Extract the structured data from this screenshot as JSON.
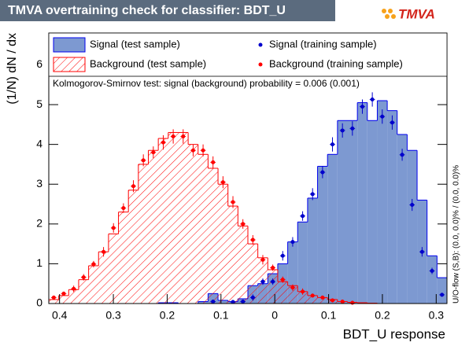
{
  "chart_data": {
    "type": "histogram",
    "title": "TMVA overtraining check for classifier: BDT_U",
    "logo": "TMVA",
    "xlabel": "BDT_U response",
    "ylabel": "(1/N) dN / dx",
    "annotation": "Kolmogorov-Smirnov test: signal (background) probability = 0.006 (0.001)",
    "side_note": "U/O-flow (S,B): (0.0, 0.0)% / (0.0, 0.0)%",
    "bins": [
      -0.42,
      -0.4015,
      -0.383,
      -0.3645,
      -0.346,
      -0.3275,
      -0.309,
      -0.2905,
      -0.272,
      -0.2535,
      -0.235,
      -0.2165,
      -0.198,
      -0.1795,
      -0.161,
      -0.1425,
      -0.124,
      -0.1055,
      -0.087,
      -0.0685,
      -0.05,
      -0.0315,
      -0.013,
      0.0055,
      0.024,
      0.0425,
      0.061,
      0.0795,
      0.098,
      0.1165,
      0.135,
      0.1535,
      0.172,
      0.1905,
      0.209,
      0.2275,
      0.246,
      0.2645,
      0.283,
      0.3015,
      0.32
    ],
    "xlim": [
      -0.42,
      0.32
    ],
    "xticks": [
      {
        "value": -0.4,
        "label": "0.4"
      },
      {
        "value": -0.3,
        "label": "0.3"
      },
      {
        "value": -0.2,
        "label": "0.2"
      },
      {
        "value": -0.1,
        "label": "0.1"
      },
      0,
      0.1,
      0.2,
      0.3
    ],
    "ylim": [
      0,
      6.8
    ],
    "yticks": [
      0,
      1,
      2,
      3,
      4,
      5,
      6
    ],
    "series": [
      {
        "name": "Signal (test sample)",
        "style": "fill",
        "color": "#7d99d1",
        "edge": "#0000ee",
        "values": [
          0,
          0,
          0,
          0,
          0,
          0,
          0,
          0,
          0,
          0,
          0,
          0.02,
          0.02,
          0,
          0,
          0.05,
          0.25,
          0.08,
          0.05,
          0.12,
          0.45,
          0.5,
          0.75,
          1.0,
          1.55,
          2.05,
          2.65,
          3.45,
          3.75,
          4.6,
          4.6,
          5.05,
          4.6,
          5.1,
          4.85,
          4.25,
          3.85,
          2.6,
          1.2,
          0.65
        ]
      },
      {
        "name": "Background (test sample)",
        "style": "hatch",
        "color": "#ff0000",
        "values": [
          0.1,
          0.2,
          0.35,
          0.6,
          0.95,
          1.3,
          1.75,
          2.3,
          2.85,
          3.5,
          3.85,
          4.15,
          4.3,
          4.3,
          4.0,
          3.75,
          3.4,
          3.0,
          2.45,
          1.95,
          1.5,
          1.15,
          0.85,
          0.55,
          0.45,
          0.3,
          0.2,
          0.15,
          0.1,
          0.05,
          0.03,
          0.02,
          0.01,
          0,
          0,
          0,
          0,
          0,
          0,
          0
        ]
      },
      {
        "name": "Signal (training sample)",
        "style": "points",
        "color": "#0000cc",
        "values": [
          null,
          null,
          null,
          null,
          null,
          null,
          null,
          null,
          null,
          null,
          null,
          null,
          null,
          null,
          null,
          null,
          0.05,
          null,
          0.04,
          0.05,
          0.15,
          0.55,
          0.55,
          1.2,
          1.55,
          2.2,
          2.75,
          3.3,
          4.0,
          4.35,
          4.4,
          4.95,
          5.13,
          4.7,
          4.55,
          3.74,
          2.48,
          1.3,
          0.82,
          0.22
        ],
        "errors": [
          null,
          null,
          null,
          null,
          null,
          null,
          null,
          null,
          null,
          null,
          null,
          null,
          null,
          null,
          null,
          null,
          0.05,
          null,
          0.05,
          0.05,
          0.08,
          0.08,
          0.08,
          0.12,
          0.12,
          0.12,
          0.15,
          0.15,
          0.18,
          0.18,
          0.18,
          0.18,
          0.18,
          0.18,
          0.18,
          0.15,
          0.15,
          0.12,
          0.08,
          0.05
        ]
      },
      {
        "name": "Background (training sample)",
        "style": "points",
        "color": "#ff0000",
        "values": [
          0.15,
          0.25,
          0.37,
          0.66,
          0.99,
          1.3,
          1.9,
          2.4,
          2.95,
          3.6,
          3.8,
          4.05,
          4.2,
          4.2,
          3.85,
          3.85,
          3.55,
          3.05,
          2.55,
          2.0,
          1.6,
          1.1,
          0.9,
          0.6,
          0.4,
          0.3,
          0.2,
          0.15,
          0.08,
          0.05,
          0.02,
          null,
          null,
          null,
          null,
          null,
          null,
          null,
          null,
          null
        ],
        "errors": [
          0.05,
          0.05,
          0.08,
          0.08,
          0.08,
          0.12,
          0.12,
          0.12,
          0.15,
          0.15,
          0.15,
          0.18,
          0.18,
          0.18,
          0.15,
          0.15,
          0.15,
          0.15,
          0.15,
          0.12,
          0.12,
          0.12,
          0.08,
          0.08,
          0.08,
          0.08,
          0.05,
          0.05,
          0.05,
          0.05,
          0.05,
          null,
          null,
          null,
          null,
          null,
          null,
          null,
          null,
          null
        ]
      }
    ]
  }
}
